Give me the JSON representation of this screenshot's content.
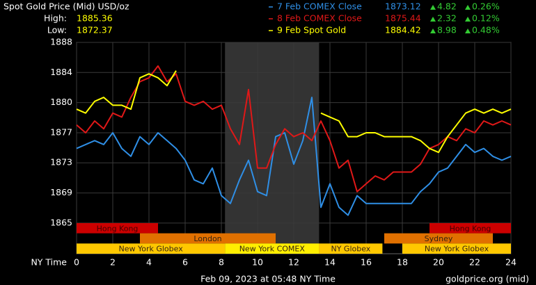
{
  "chart_data": {
    "type": "line",
    "title": "Spot Gold Price (Mid) USD/oz",
    "high_label": "High:",
    "high": 1885.36,
    "low_label": "Low:",
    "low": 1872.37,
    "x_label": "NY Time",
    "footer": "Feb 09, 2023 at 05:48 NY Time",
    "source": "goldprice.org (mid)",
    "x": [
      0,
      0.5,
      1,
      1.5,
      2,
      2.5,
      3,
      3.5,
      4,
      4.5,
      5,
      5.5,
      6,
      6.5,
      7,
      7.5,
      8,
      8.5,
      9,
      9.5,
      10,
      10.5,
      11,
      11.5,
      12,
      12.5,
      13,
      13.5,
      14,
      14.5,
      15,
      15.5,
      16,
      16.5,
      17,
      17.5,
      18,
      18.5,
      19,
      19.5,
      20,
      20.5,
      21,
      21.5,
      22,
      22.5,
      23,
      23.5,
      24
    ],
    "xlim": [
      0,
      24
    ],
    "xticks": [
      0,
      2,
      4,
      6,
      8,
      10,
      12,
      14,
      16,
      18,
      20,
      22,
      24
    ],
    "ylim": [
      1861.1,
      1888
    ],
    "yticks": [
      1888,
      {
        "value": 1884.17,
        "label": "1884"
      },
      {
        "value": 1880.33,
        "label": "1880"
      },
      {
        "value": 1876.5,
        "label": "1877"
      },
      {
        "value": 1872.67,
        "label": "1873"
      },
      {
        "value": 1868.83,
        "label": "1869"
      },
      1865
    ],
    "grid": true,
    "shaded": [
      8.2,
      13.4
    ],
    "series": [
      {
        "name": "7 Feb COMEX Close",
        "color": "#2f8fe6",
        "close": 1873.12,
        "change": 4.82,
        "change_pct": 0.26,
        "change_pct_label": "0.26%",
        "values": [
          1874.5,
          1875,
          1875.5,
          1875,
          1876.5,
          1874.5,
          1873.5,
          1876,
          1875,
          1876.5,
          1875.5,
          1874.5,
          1873,
          1870.5,
          1870,
          1872,
          1868.5,
          1867.5,
          1870.5,
          1873,
          1869,
          1868.5,
          1876,
          1876.5,
          1872.5,
          1875.5,
          1881,
          1867,
          1870,
          1867,
          1866,
          1868.5,
          1867.5,
          1867.5,
          1867.5,
          1867.5,
          1867.5,
          1867.5,
          1869,
          1870,
          1871.5,
          1872,
          1873.5,
          1875,
          1874,
          1874.5,
          1873.5,
          1873,
          1873.5
        ]
      },
      {
        "name": "8 Feb COMEX Close",
        "color": "#e01818",
        "close": 1875.44,
        "change": 2.32,
        "change_pct": 0.12,
        "change_pct_label": "0.12%",
        "values": [
          1877.5,
          1876.5,
          1878,
          1877,
          1879,
          1878.5,
          1881,
          1883,
          1883.5,
          1885,
          1883,
          1884,
          1880.5,
          1880,
          1880.5,
          1879.5,
          1880,
          1877,
          1875,
          1882,
          1872,
          1872,
          1875,
          1877,
          1876,
          1876.5,
          1875.5,
          1878,
          1875.5,
          1872,
          1873,
          1869,
          1870,
          1871,
          1870.5,
          1871.5,
          1871.5,
          1871.5,
          1872.5,
          1874.5,
          1875,
          1876,
          1875.5,
          1877,
          1876.5,
          1878,
          1877.5,
          1878,
          1877.5
        ]
      },
      {
        "name": "9 Feb Spot Gold",
        "color": "#ffff00",
        "close": 1884.42,
        "change": 8.98,
        "change_pct": 0.48,
        "change_pct_label": "0.48%",
        "values": [
          1879.5,
          1879,
          1880.5,
          1881,
          1880,
          1880,
          1879.5,
          1883.5,
          1884,
          1883.5,
          1882.5,
          1884.4,
          null,
          null,
          null,
          null,
          null,
          null,
          null,
          null,
          null,
          null,
          null,
          null,
          null,
          null,
          null,
          1879,
          1878.5,
          1878,
          1876,
          1876,
          1876.5,
          1876.5,
          1876,
          1876,
          1876,
          1876,
          1875.5,
          1874.5,
          1874,
          1876,
          1877.5,
          1879,
          1879.5,
          1879,
          1879.5,
          1879,
          1879.5
        ]
      }
    ],
    "sessions": [
      {
        "name": "Hong Kong",
        "start": 0,
        "end": 4.5,
        "row": 0,
        "color": "#cc0000"
      },
      {
        "name": "Hong Kong",
        "start": 19.5,
        "end": 24,
        "row": 0,
        "color": "#cc0000"
      },
      {
        "name": "London",
        "start": 3.5,
        "end": 11,
        "row": 1,
        "color": "#e07000"
      },
      {
        "name": "Sydney",
        "start": 17,
        "end": 23,
        "row": 1,
        "color": "#e07000"
      },
      {
        "name": "New York Globex",
        "start": 0,
        "end": 8.2,
        "row": 2,
        "color": "#ffc800"
      },
      {
        "name": "New York COMEX",
        "start": 8.2,
        "end": 13.4,
        "row": 2,
        "color": "#ffee00"
      },
      {
        "name": "NY Globex",
        "start": 13.4,
        "end": 16.9,
        "row": 2,
        "color": "#ffc800"
      },
      {
        "name": "New York Globex",
        "start": 18,
        "end": 24,
        "row": 2,
        "color": "#ffc800"
      }
    ]
  }
}
